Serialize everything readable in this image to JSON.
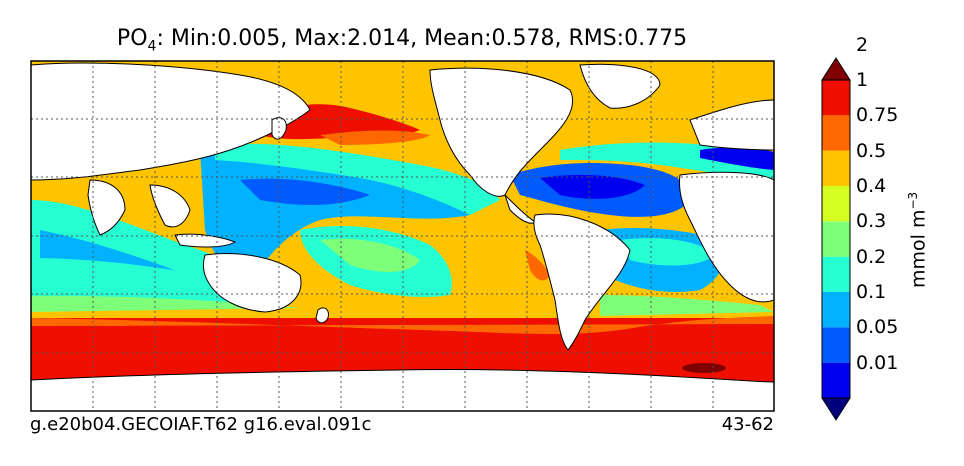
{
  "title": {
    "variable": "PO",
    "subscript": "4",
    "stats": ": Min:0.005, Max:2.014, Mean:0.578, RMS:0.775"
  },
  "footer": {
    "left": "g.e20b04.GECOIAF.T62 g16.eval.091c",
    "right": "43-62"
  },
  "colorbar": {
    "label": "mmol m",
    "label_exponent": "−3",
    "levels": [
      "0.01",
      "0.05",
      "0.1",
      "0.2",
      "0.3",
      "0.4",
      "0.5",
      "0.75",
      "1",
      "2"
    ],
    "colors": [
      "#00007f",
      "#0000f0",
      "#005bff",
      "#00b2ff",
      "#26ffd1",
      "#7dff79",
      "#d4ff23",
      "#ffc400",
      "#ff6800",
      "#ee0f00",
      "#7f0000"
    ]
  },
  "map": {
    "land_color": "#ffffff",
    "coastline_color": "#000000",
    "grid": "dotted"
  }
}
